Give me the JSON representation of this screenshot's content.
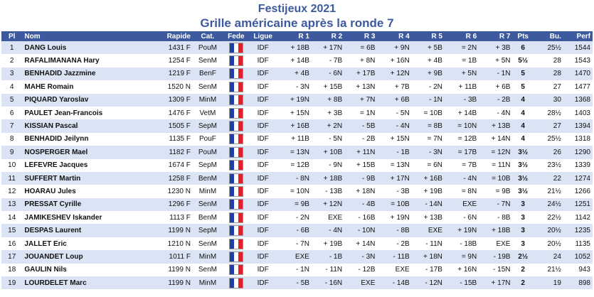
{
  "title": "Festijeux 2021",
  "subtitle": "Grille américaine après la ronde 7",
  "colors": {
    "header_bg": "#3d5a9e",
    "title": "#3d5a9e",
    "row_alt": "#dbe4f4"
  },
  "headers": {
    "pl": "Pl",
    "nom": "Nom",
    "rapide": "Rapide",
    "cat": "Cat.",
    "fede": "Fede",
    "ligue": "Ligue",
    "r1": "R 1",
    "r2": "R 2",
    "r3": "R 3",
    "r4": "R 4",
    "r5": "R 5",
    "r6": "R 6",
    "r7": "R 7",
    "pts": "Pts",
    "bu": "Bu.",
    "perf": "Perf"
  },
  "rows": [
    {
      "pl": "1",
      "nom": "DANG Louis",
      "rapide": "1431 F",
      "cat": "PouM",
      "fede": "FRA",
      "ligue": "IDF",
      "r": [
        "+ 18B",
        "+ 17N",
        "= 6B",
        "+ 9N",
        "+ 5B",
        "= 2N",
        "+ 3B"
      ],
      "pts": "6",
      "bu": "25½",
      "perf": "1544"
    },
    {
      "pl": "2",
      "nom": "RAFALIMANANA Hary",
      "rapide": "1254 F",
      "cat": "SenM",
      "fede": "FRA",
      "ligue": "IDF",
      "r": [
        "+ 14B",
        "- 7B",
        "+ 8N",
        "+ 16N",
        "+ 4B",
        "= 1B",
        "+ 5N"
      ],
      "pts": "5½",
      "bu": "28",
      "perf": "1543"
    },
    {
      "pl": "3",
      "nom": "BENHADID Jazzmine",
      "rapide": "1219 F",
      "cat": "BenF",
      "fede": "FRA",
      "ligue": "IDF",
      "r": [
        "+ 4B",
        "- 6N",
        "+ 17B",
        "+ 12N",
        "+ 9B",
        "+ 5N",
        "- 1N"
      ],
      "pts": "5",
      "bu": "28",
      "perf": "1470"
    },
    {
      "pl": "4",
      "nom": "MAHE Romain",
      "rapide": "1520 N",
      "cat": "SenM",
      "fede": "FRA",
      "ligue": "IDF",
      "r": [
        "- 3N",
        "+ 15B",
        "+ 13N",
        "+ 7B",
        "- 2N",
        "+ 11B",
        "+ 6B"
      ],
      "pts": "5",
      "bu": "27",
      "perf": "1477"
    },
    {
      "pl": "5",
      "nom": "PIQUARD Yaroslav",
      "rapide": "1309 F",
      "cat": "MinM",
      "fede": "FRA",
      "ligue": "IDF",
      "r": [
        "+ 19N",
        "+ 8B",
        "+ 7N",
        "+ 6B",
        "- 1N",
        "- 3B",
        "- 2B"
      ],
      "pts": "4",
      "bu": "30",
      "perf": "1368"
    },
    {
      "pl": "6",
      "nom": "PAULET Jean-Francois",
      "rapide": "1476 F",
      "cat": "VetM",
      "fede": "FRA",
      "ligue": "IDF",
      "r": [
        "+ 15N",
        "+ 3B",
        "= 1N",
        "- 5N",
        "= 10B",
        "+ 14B",
        "- 4N"
      ],
      "pts": "4",
      "bu": "28½",
      "perf": "1403"
    },
    {
      "pl": "7",
      "nom": "KISSIAN Pascal",
      "rapide": "1505 F",
      "cat": "SepM",
      "fede": "FRA",
      "ligue": "IDF",
      "r": [
        "+ 16B",
        "+ 2N",
        "- 5B",
        "- 4N",
        "= 8B",
        "= 10N",
        "+ 13B"
      ],
      "pts": "4",
      "bu": "27",
      "perf": "1394"
    },
    {
      "pl": "8",
      "nom": "BENHADID Jeilynn",
      "rapide": "1135 F",
      "cat": "PouF",
      "fede": "FRA",
      "ligue": "IDF",
      "r": [
        "+ 11B",
        "- 5N",
        "- 2B",
        "+ 15N",
        "= 7N",
        "= 12B",
        "+ 14N"
      ],
      "pts": "4",
      "bu": "25½",
      "perf": "1318"
    },
    {
      "pl": "9",
      "nom": "NOSPERGER Mael",
      "rapide": "1182 F",
      "cat": "PouM",
      "fede": "FRA",
      "ligue": "IDF",
      "r": [
        "= 13N",
        "+ 10B",
        "+ 11N",
        "- 1B",
        "- 3N",
        "= 17B",
        "= 12N"
      ],
      "pts": "3½",
      "bu": "26",
      "perf": "1290"
    },
    {
      "pl": "10",
      "nom": "LEFEVRE Jacques",
      "rapide": "1674 F",
      "cat": "SepM",
      "fede": "FRA",
      "ligue": "IDF",
      "r": [
        "= 12B",
        "- 9N",
        "+ 15B",
        "= 13N",
        "= 6N",
        "= 7B",
        "= 11N"
      ],
      "pts": "3½",
      "bu": "23½",
      "perf": "1339"
    },
    {
      "pl": "11",
      "nom": "SUFFERT Martin",
      "rapide": "1258 F",
      "cat": "BenM",
      "fede": "FRA",
      "ligue": "IDF",
      "r": [
        "- 8N",
        "+ 18B",
        "- 9B",
        "+ 17N",
        "+ 16B",
        "- 4N",
        "= 10B"
      ],
      "pts": "3½",
      "bu": "22",
      "perf": "1274"
    },
    {
      "pl": "12",
      "nom": "HOARAU Jules",
      "rapide": "1230 N",
      "cat": "MinM",
      "fede": "FRA",
      "ligue": "IDF",
      "r": [
        "= 10N",
        "- 13B",
        "+ 18N",
        "- 3B",
        "+ 19B",
        "= 8N",
        "= 9B"
      ],
      "pts": "3½",
      "bu": "21½",
      "perf": "1266"
    },
    {
      "pl": "13",
      "nom": "PRESSAT Cyrille",
      "rapide": "1296 F",
      "cat": "SenM",
      "fede": "FRA",
      "ligue": "IDF",
      "r": [
        "= 9B",
        "+ 12N",
        "- 4B",
        "= 10B",
        "- 14N",
        "EXE",
        "- 7N"
      ],
      "pts": "3",
      "bu": "24½",
      "perf": "1251"
    },
    {
      "pl": "14",
      "nom": "JAMIKESHEV Iskander",
      "rapide": "1113 F",
      "cat": "BenM",
      "fede": "FRA",
      "ligue": "IDF",
      "r": [
        "- 2N",
        "EXE",
        "- 16B",
        "+ 19N",
        "+ 13B",
        "- 6N",
        "- 8B"
      ],
      "pts": "3",
      "bu": "22½",
      "perf": "1142"
    },
    {
      "pl": "15",
      "nom": "DESPAS Laurent",
      "rapide": "1199 N",
      "cat": "SepM",
      "fede": "FRA",
      "ligue": "IDF",
      "r": [
        "- 6B",
        "- 4N",
        "- 10N",
        "- 8B",
        "EXE",
        "+ 19N",
        "+ 18B"
      ],
      "pts": "3",
      "bu": "20½",
      "perf": "1235"
    },
    {
      "pl": "16",
      "nom": "JALLET Eric",
      "rapide": "1210 N",
      "cat": "SenM",
      "fede": "FRA",
      "ligue": "IDF",
      "r": [
        "- 7N",
        "+ 19B",
        "+ 14N",
        "- 2B",
        "- 11N",
        "- 18B",
        "EXE"
      ],
      "pts": "3",
      "bu": "20½",
      "perf": "1135"
    },
    {
      "pl": "17",
      "nom": "JOUANDET Loup",
      "rapide": "1011 F",
      "cat": "MinM",
      "fede": "FRA",
      "ligue": "IDF",
      "r": [
        "EXE",
        "- 1B",
        "- 3N",
        "- 11B",
        "+ 18N",
        "= 9N",
        "- 19B"
      ],
      "pts": "2½",
      "bu": "24",
      "perf": "1052"
    },
    {
      "pl": "18",
      "nom": "GAULIN Nils",
      "rapide": "1199 N",
      "cat": "SenM",
      "fede": "FRA",
      "ligue": "IDF",
      "r": [
        "- 1N",
        "- 11N",
        "- 12B",
        "EXE",
        "- 17B",
        "+ 16N",
        "- 15N"
      ],
      "pts": "2",
      "bu": "21½",
      "perf": "943"
    },
    {
      "pl": "19",
      "nom": "LOURDELET Marc",
      "rapide": "1199 N",
      "cat": "MinM",
      "fede": "FRA",
      "ligue": "IDF",
      "r": [
        "- 5B",
        "- 16N",
        "EXE",
        "- 14B",
        "- 12N",
        "- 15B",
        "+ 17N"
      ],
      "pts": "2",
      "bu": "19",
      "perf": "898"
    }
  ]
}
